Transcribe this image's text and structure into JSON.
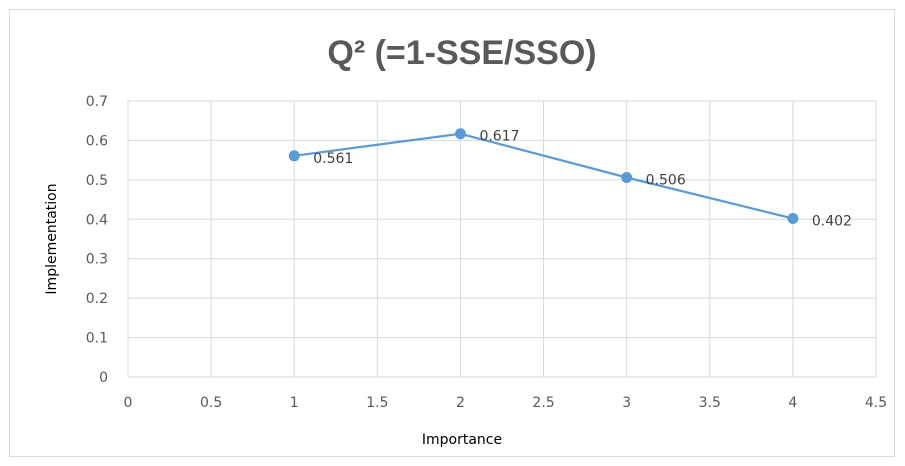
{
  "chart_data": {
    "type": "scatter",
    "title": "Q² (=1-SSE/SSO)",
    "xlabel": "Importance",
    "ylabel": "Implementation",
    "xlim": [
      0,
      4.5
    ],
    "ylim": [
      0,
      0.7
    ],
    "xticks": [
      "0",
      "0.5",
      "1",
      "1.5",
      "2",
      "2.5",
      "3",
      "3.5",
      "4",
      "4.5"
    ],
    "yticks": [
      "0",
      "0.1",
      "0.2",
      "0.3",
      "0.4",
      "0.5",
      "0.6",
      "0.7"
    ],
    "grid": true,
    "connected": true,
    "color": "#5b9bd5",
    "points": [
      {
        "x": 1,
        "y": 0.561,
        "label": "0.561"
      },
      {
        "x": 2,
        "y": 0.617,
        "label": "0.617"
      },
      {
        "x": 3,
        "y": 0.506,
        "label": "0.506"
      },
      {
        "x": 4,
        "y": 0.402,
        "label": "0.402"
      }
    ]
  }
}
